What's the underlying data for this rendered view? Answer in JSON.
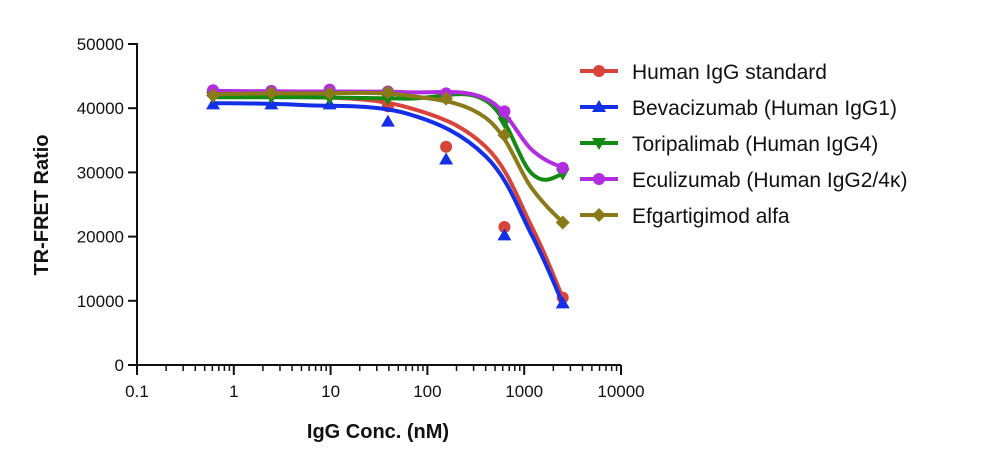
{
  "chart_data": {
    "type": "line",
    "title": "",
    "xlabel": "IgG Conc. (nM)",
    "ylabel": "TR-FRET Ratio",
    "xscale": "log",
    "xlim": [
      0.1,
      10000
    ],
    "ylim": [
      0,
      50000
    ],
    "xtick_labels": [
      "0.1",
      "1",
      "10",
      "100",
      "1000",
      "10000"
    ],
    "ytick_labels": [
      "0",
      "10000",
      "20000",
      "30000",
      "40000",
      "50000"
    ],
    "legend_position": "top-right",
    "series": [
      {
        "name": "Human IgG standard",
        "color": "#d9443a",
        "marker": "circle",
        "x": [
          0.61,
          2.44,
          9.77,
          39.1,
          156,
          625,
          2500
        ],
        "values": [
          42300,
          42200,
          42100,
          40300,
          34000,
          21500,
          10500
        ],
        "curve_y": [
          42200,
          41900,
          40200,
          34000,
          21500,
          10500
        ]
      },
      {
        "name": "Bevacizumab (Human IgG1)",
        "color": "#1330e8",
        "marker": "triangle-up",
        "x": [
          0.61,
          2.44,
          9.77,
          39.1,
          156,
          625,
          2500
        ],
        "values": [
          40600,
          40600,
          40600,
          37900,
          32000,
          20200,
          9600
        ],
        "curve_y": [
          40800,
          40500,
          39200,
          32500,
          20200,
          9600
        ]
      },
      {
        "name": "Toripalimab (Human IgG4)",
        "color": "#138a13",
        "marker": "triangle-down",
        "x": [
          0.61,
          2.44,
          9.77,
          39.1,
          156,
          625,
          2500
        ],
        "values": [
          41800,
          41800,
          41600,
          41500,
          41500,
          37800,
          29800
        ],
        "curve_y": [
          41700,
          41700,
          41500,
          41200,
          29800,
          29700
        ]
      },
      {
        "name": "Eculizumab (Human IgG2/4κ)",
        "color": "#b22de0",
        "marker": "circle",
        "x": [
          0.61,
          2.44,
          9.77,
          39.1,
          156,
          625,
          2500
        ],
        "values": [
          42800,
          42700,
          42900,
          42600,
          42300,
          39500,
          30700
        ],
        "curve_y": [
          42700,
          42600,
          42500,
          41500,
          33500,
          30700
        ]
      },
      {
        "name": "Efgartigimod alfa",
        "color": "#8a7a18",
        "marker": "diamond",
        "x": [
          0.61,
          2.44,
          9.77,
          39.1,
          156,
          625,
          2500
        ],
        "values": [
          42000,
          42400,
          42300,
          42500,
          41500,
          35800,
          22200
        ],
        "curve_y": [
          42200,
          42300,
          42000,
          38500,
          27500,
          22200
        ]
      }
    ],
    "curve_x": [
      0.6,
      5,
      60,
      400,
      1200,
      2500
    ]
  }
}
